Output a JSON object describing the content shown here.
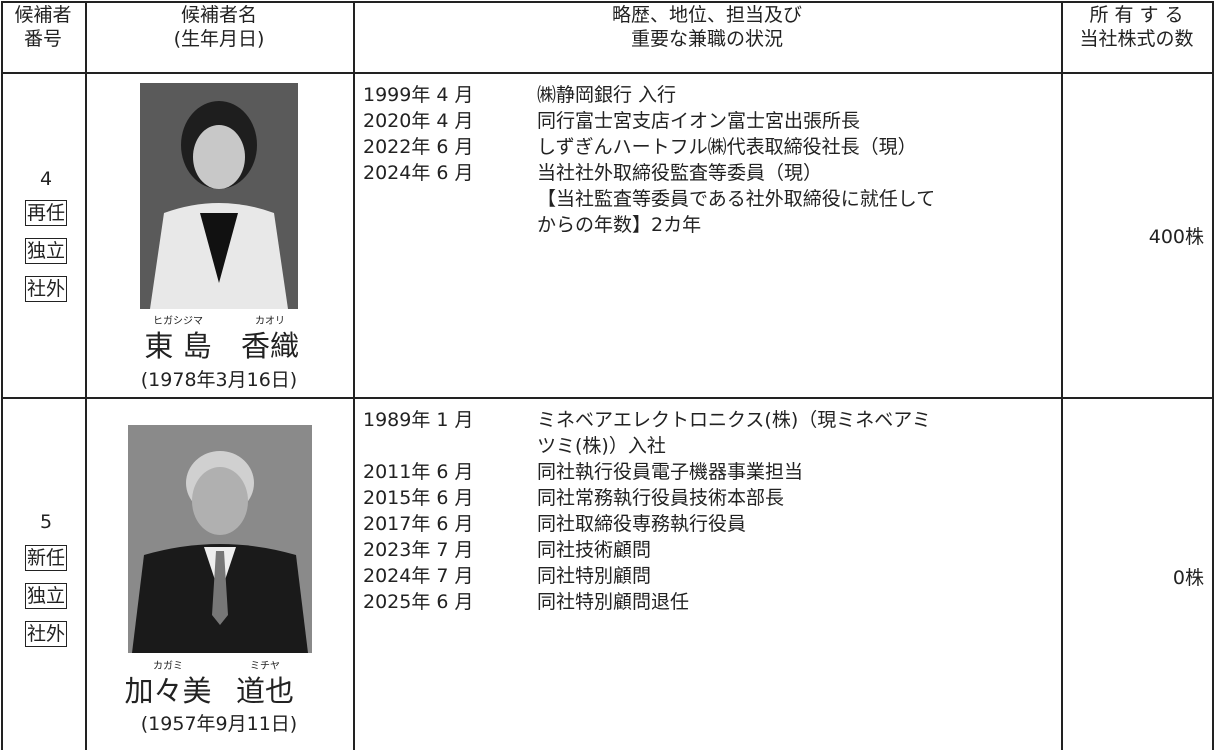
{
  "table": {
    "header": [
      [
        "候補者",
        "番号"
      ],
      [
        "候補者名",
        "(生年月日)"
      ],
      [
        "略歴、地位、担当及び",
        "重要な兼職の状況"
      ],
      [
        "所 有 す る",
        "当社株式の数"
      ]
    ],
    "rows": [
      {
        "number": "4",
        "tags": [
          "再任",
          "独立",
          "社外"
        ],
        "furigana": [
          "ヒガシジマ",
          "カオリ"
        ],
        "name": [
          "東 島",
          "香織"
        ],
        "birth": "(1978年3月16日)",
        "history": [
          {
            "date": "1999年 4 月",
            "text": [
              "㈱静岡銀行 入行"
            ]
          },
          {
            "date": "2020年 4 月",
            "text": [
              "同行富士宮支店イオン富士宮出張所長"
            ]
          },
          {
            "date": "2022年 6 月",
            "text": [
              "しずぎんハートフル㈱代表取締役社長（現）"
            ]
          },
          {
            "date": "2024年 6 月",
            "text": [
              "当社社外取締役監査等委員（現）",
              "【当社監査等委員である社外取締役に就任して",
              "からの年数】2カ年"
            ]
          }
        ],
        "shares": "400株"
      },
      {
        "number": "5",
        "tags": [
          "新任",
          "独立",
          "社外"
        ],
        "furigana": [
          "カガミ",
          "ミチヤ"
        ],
        "name": [
          "加々美",
          "道也"
        ],
        "birth": "(1957年9月11日)",
        "history": [
          {
            "date": "1989年 1 月",
            "text": [
              "ミネベアエレクトロニクス(株)（現ミネベアミ",
              "ツミ(株)）入社"
            ]
          },
          {
            "date": "2011年 6 月",
            "text": [
              "同社執行役員電子機器事業担当"
            ]
          },
          {
            "date": "2015年 6 月",
            "text": [
              "同社常務執行役員技術本部長"
            ]
          },
          {
            "date": "2017年 6 月",
            "text": [
              "同社取締役専務執行役員"
            ]
          },
          {
            "date": "2023年 7 月",
            "text": [
              "同社技術顧問"
            ]
          },
          {
            "date": "2024年 7 月",
            "text": [
              "同社特別顧問"
            ]
          },
          {
            "date": "2025年 6 月",
            "text": [
              "同社特別顧問退任"
            ]
          }
        ],
        "shares": "0株"
      }
    ]
  }
}
